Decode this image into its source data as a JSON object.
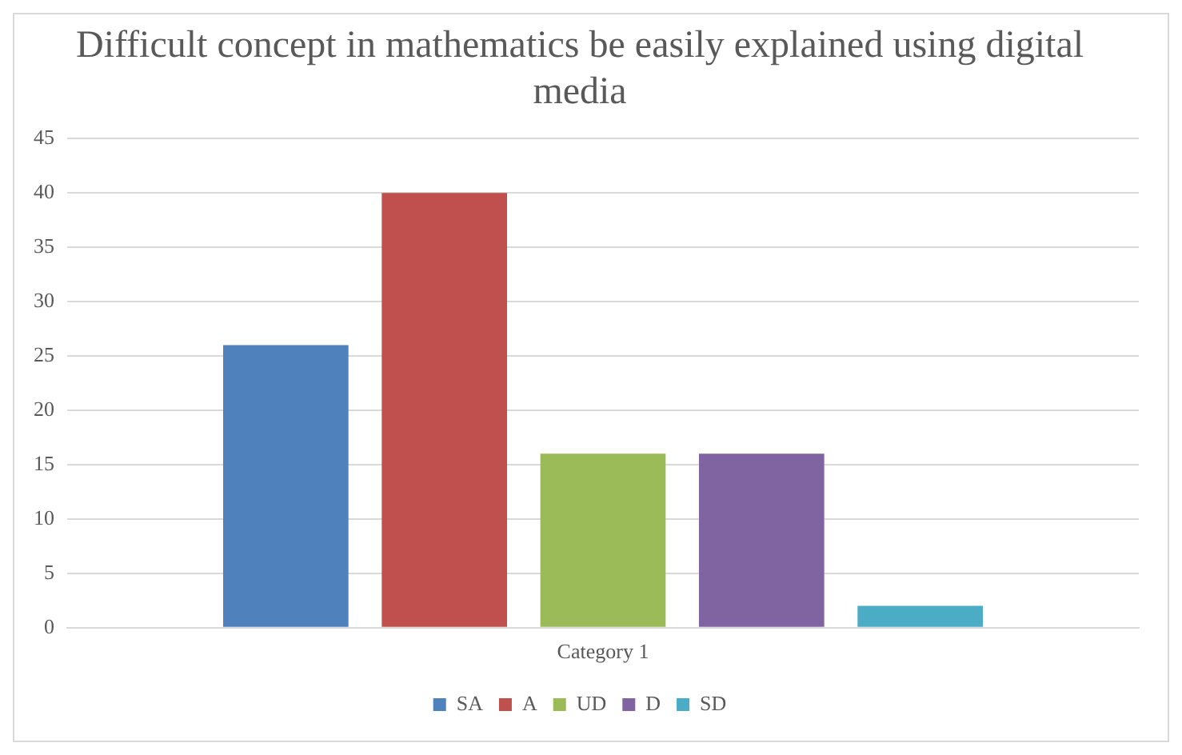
{
  "chart_data": {
    "type": "bar",
    "title": "Difficult concept in mathematics be easily explained using digital media",
    "categories": [
      "Category 1"
    ],
    "series": [
      {
        "name": "SA",
        "color": "#4f81bd",
        "values": [
          26
        ]
      },
      {
        "name": "A",
        "color": "#c0504d",
        "values": [
          40
        ]
      },
      {
        "name": "UD",
        "color": "#9bbb59",
        "values": [
          16
        ]
      },
      {
        "name": "D",
        "color": "#8064a2",
        "values": [
          16
        ]
      },
      {
        "name": "SD",
        "color": "#4bacc6",
        "values": [
          2
        ]
      }
    ],
    "ylim": [
      0,
      45
    ],
    "yticks": [
      0,
      5,
      10,
      15,
      20,
      25,
      30,
      35,
      40,
      45
    ],
    "grid": "y",
    "legend": "bottom"
  }
}
